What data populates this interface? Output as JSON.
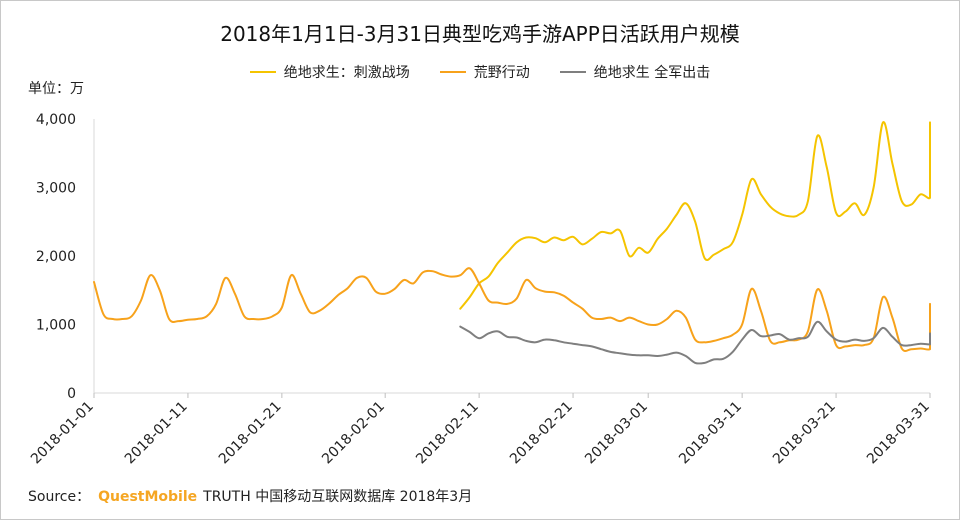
{
  "chart_data": {
    "type": "line",
    "title": "2018年1月1日-3月31日典型吃鸡手游APP日活跃用户规模",
    "unit_label": "单位：万",
    "ylim": [
      0,
      4000
    ],
    "y_ticks": [
      "0",
      "1,000",
      "2,000",
      "3,000",
      "4,000"
    ],
    "y_tick_values": [
      0,
      1000,
      2000,
      3000,
      4000
    ],
    "x_start": "2018-01-01",
    "x_end": "2018-03-31",
    "x_ticks": [
      "2018-01-01",
      "2018-01-11",
      "2018-01-21",
      "2018-02-01",
      "2018-02-11",
      "2018-02-21",
      "2018-03-01",
      "2018-03-11",
      "2018-03-21",
      "2018-03-31"
    ],
    "grid": false,
    "legend_position": "top",
    "series": [
      {
        "name": "绝地求生：刺激战场",
        "color": "#f5c400",
        "points": [
          [
            "2018-02-09",
            1230
          ],
          [
            "2018-02-10",
            1400
          ],
          [
            "2018-02-11",
            1600
          ],
          [
            "2018-02-12",
            1700
          ],
          [
            "2018-02-13",
            1900
          ],
          [
            "2018-02-14",
            2050
          ],
          [
            "2018-02-15",
            2200
          ],
          [
            "2018-02-16",
            2270
          ],
          [
            "2018-02-17",
            2260
          ],
          [
            "2018-02-18",
            2200
          ],
          [
            "2018-02-19",
            2270
          ],
          [
            "2018-02-20",
            2230
          ],
          [
            "2018-02-21",
            2280
          ],
          [
            "2018-02-22",
            2170
          ],
          [
            "2018-02-23",
            2250
          ],
          [
            "2018-02-24",
            2350
          ],
          [
            "2018-02-25",
            2330
          ],
          [
            "2018-02-26",
            2370
          ],
          [
            "2018-02-27",
            2000
          ],
          [
            "2018-02-28",
            2120
          ],
          [
            "2018-03-01",
            2050
          ],
          [
            "2018-03-02",
            2250
          ],
          [
            "2018-03-03",
            2400
          ],
          [
            "2018-03-04",
            2600
          ],
          [
            "2018-03-05",
            2770
          ],
          [
            "2018-03-06",
            2500
          ],
          [
            "2018-03-07",
            1970
          ],
          [
            "2018-03-08",
            2020
          ],
          [
            "2018-03-09",
            2100
          ],
          [
            "2018-03-10",
            2200
          ],
          [
            "2018-03-11",
            2600
          ],
          [
            "2018-03-12",
            3120
          ],
          [
            "2018-03-13",
            2900
          ],
          [
            "2018-03-14",
            2720
          ],
          [
            "2018-03-15",
            2620
          ],
          [
            "2018-03-16",
            2580
          ],
          [
            "2018-03-17",
            2600
          ],
          [
            "2018-03-18",
            2800
          ],
          [
            "2018-03-19",
            3750
          ],
          [
            "2018-03-20",
            3300
          ],
          [
            "2018-03-21",
            2630
          ],
          [
            "2018-03-22",
            2650
          ],
          [
            "2018-03-23",
            2770
          ],
          [
            "2018-03-24",
            2600
          ],
          [
            "2018-03-25",
            3000
          ],
          [
            "2018-03-26",
            3950
          ],
          [
            "2018-03-27",
            3350
          ],
          [
            "2018-03-28",
            2800
          ],
          [
            "2018-03-29",
            2750
          ],
          [
            "2018-03-30",
            2900
          ],
          [
            "2018-03-31",
            2850
          ],
          [
            "2018-04-01",
            3100
          ],
          [
            "2018-04-02",
            3950
          ]
        ]
      },
      {
        "name": "荒野行动",
        "color": "#f7a21b",
        "points": [
          [
            "2018-01-01",
            1620
          ],
          [
            "2018-01-02",
            1150
          ],
          [
            "2018-01-03",
            1080
          ],
          [
            "2018-01-04",
            1080
          ],
          [
            "2018-01-05",
            1120
          ],
          [
            "2018-01-06",
            1350
          ],
          [
            "2018-01-07",
            1720
          ],
          [
            "2018-01-08",
            1500
          ],
          [
            "2018-01-09",
            1080
          ],
          [
            "2018-01-10",
            1050
          ],
          [
            "2018-01-11",
            1070
          ],
          [
            "2018-01-12",
            1080
          ],
          [
            "2018-01-13",
            1120
          ],
          [
            "2018-01-14",
            1300
          ],
          [
            "2018-01-15",
            1680
          ],
          [
            "2018-01-16",
            1450
          ],
          [
            "2018-01-17",
            1120
          ],
          [
            "2018-01-18",
            1080
          ],
          [
            "2018-01-19",
            1080
          ],
          [
            "2018-01-20",
            1120
          ],
          [
            "2018-01-21",
            1250
          ],
          [
            "2018-01-22",
            1720
          ],
          [
            "2018-01-23",
            1450
          ],
          [
            "2018-01-24",
            1180
          ],
          [
            "2018-01-25",
            1200
          ],
          [
            "2018-01-26",
            1300
          ],
          [
            "2018-01-27",
            1430
          ],
          [
            "2018-01-28",
            1530
          ],
          [
            "2018-01-29",
            1680
          ],
          [
            "2018-01-30",
            1680
          ],
          [
            "2018-01-31",
            1480
          ],
          [
            "2018-02-01",
            1450
          ],
          [
            "2018-02-02",
            1520
          ],
          [
            "2018-02-03",
            1650
          ],
          [
            "2018-02-04",
            1600
          ],
          [
            "2018-02-05",
            1760
          ],
          [
            "2018-02-06",
            1780
          ],
          [
            "2018-02-07",
            1730
          ],
          [
            "2018-02-08",
            1700
          ],
          [
            "2018-02-09",
            1720
          ],
          [
            "2018-02-10",
            1820
          ],
          [
            "2018-02-11",
            1600
          ],
          [
            "2018-02-12",
            1350
          ],
          [
            "2018-02-13",
            1320
          ],
          [
            "2018-02-14",
            1300
          ],
          [
            "2018-02-15",
            1380
          ],
          [
            "2018-02-16",
            1650
          ],
          [
            "2018-02-17",
            1530
          ],
          [
            "2018-02-18",
            1480
          ],
          [
            "2018-02-19",
            1470
          ],
          [
            "2018-02-20",
            1420
          ],
          [
            "2018-02-21",
            1320
          ],
          [
            "2018-02-22",
            1230
          ],
          [
            "2018-02-23",
            1100
          ],
          [
            "2018-02-24",
            1080
          ],
          [
            "2018-02-25",
            1100
          ],
          [
            "2018-02-26",
            1050
          ],
          [
            "2018-02-27",
            1100
          ],
          [
            "2018-02-28",
            1050
          ],
          [
            "2018-03-01",
            1000
          ],
          [
            "2018-03-02",
            1000
          ],
          [
            "2018-03-03",
            1080
          ],
          [
            "2018-03-04",
            1200
          ],
          [
            "2018-03-05",
            1100
          ],
          [
            "2018-03-06",
            780
          ],
          [
            "2018-03-07",
            740
          ],
          [
            "2018-03-08",
            760
          ],
          [
            "2018-03-09",
            800
          ],
          [
            "2018-03-10",
            850
          ],
          [
            "2018-03-11",
            1000
          ],
          [
            "2018-03-12",
            1520
          ],
          [
            "2018-03-13",
            1200
          ],
          [
            "2018-03-14",
            760
          ],
          [
            "2018-03-15",
            740
          ],
          [
            "2018-03-16",
            770
          ],
          [
            "2018-03-17",
            780
          ],
          [
            "2018-03-18",
            900
          ],
          [
            "2018-03-19",
            1510
          ],
          [
            "2018-03-20",
            1200
          ],
          [
            "2018-03-21",
            700
          ],
          [
            "2018-03-22",
            680
          ],
          [
            "2018-03-23",
            700
          ],
          [
            "2018-03-24",
            700
          ],
          [
            "2018-03-25",
            800
          ],
          [
            "2018-03-26",
            1400
          ],
          [
            "2018-03-27",
            1100
          ],
          [
            "2018-03-28",
            650
          ],
          [
            "2018-03-29",
            640
          ],
          [
            "2018-03-30",
            650
          ],
          [
            "2018-03-31",
            640
          ],
          [
            "2018-04-01",
            750
          ],
          [
            "2018-04-02",
            1300
          ]
        ]
      },
      {
        "name": "绝地求生 全军出击",
        "color": "#7f7f7f",
        "points": [
          [
            "2018-02-09",
            970
          ],
          [
            "2018-02-10",
            890
          ],
          [
            "2018-02-11",
            800
          ],
          [
            "2018-02-12",
            870
          ],
          [
            "2018-02-13",
            900
          ],
          [
            "2018-02-14",
            820
          ],
          [
            "2018-02-15",
            810
          ],
          [
            "2018-02-16",
            760
          ],
          [
            "2018-02-17",
            740
          ],
          [
            "2018-02-18",
            780
          ],
          [
            "2018-02-19",
            770
          ],
          [
            "2018-02-20",
            740
          ],
          [
            "2018-02-21",
            720
          ],
          [
            "2018-02-22",
            700
          ],
          [
            "2018-02-23",
            680
          ],
          [
            "2018-02-24",
            640
          ],
          [
            "2018-02-25",
            600
          ],
          [
            "2018-02-26",
            580
          ],
          [
            "2018-02-27",
            560
          ],
          [
            "2018-02-28",
            550
          ],
          [
            "2018-03-01",
            550
          ],
          [
            "2018-03-02",
            540
          ],
          [
            "2018-03-03",
            560
          ],
          [
            "2018-03-04",
            590
          ],
          [
            "2018-03-05",
            540
          ],
          [
            "2018-03-06",
            440
          ],
          [
            "2018-03-07",
            440
          ],
          [
            "2018-03-08",
            490
          ],
          [
            "2018-03-09",
            500
          ],
          [
            "2018-03-10",
            600
          ],
          [
            "2018-03-11",
            780
          ],
          [
            "2018-03-12",
            920
          ],
          [
            "2018-03-13",
            830
          ],
          [
            "2018-03-14",
            840
          ],
          [
            "2018-03-15",
            860
          ],
          [
            "2018-03-16",
            780
          ],
          [
            "2018-03-17",
            800
          ],
          [
            "2018-03-18",
            820
          ],
          [
            "2018-03-19",
            1040
          ],
          [
            "2018-03-20",
            900
          ],
          [
            "2018-03-21",
            780
          ],
          [
            "2018-03-22",
            750
          ],
          [
            "2018-03-23",
            780
          ],
          [
            "2018-03-24",
            760
          ],
          [
            "2018-03-25",
            800
          ],
          [
            "2018-03-26",
            950
          ],
          [
            "2018-03-27",
            820
          ],
          [
            "2018-03-28",
            700
          ],
          [
            "2018-03-29",
            700
          ],
          [
            "2018-03-30",
            720
          ],
          [
            "2018-03-31",
            710
          ],
          [
            "2018-04-01",
            740
          ],
          [
            "2018-04-02",
            870
          ]
        ]
      }
    ]
  },
  "source": {
    "prefix": "Source：",
    "brand": "QuestMobile",
    "text": "TRUTH 中国移动互联网数据库 2018年3月"
  }
}
